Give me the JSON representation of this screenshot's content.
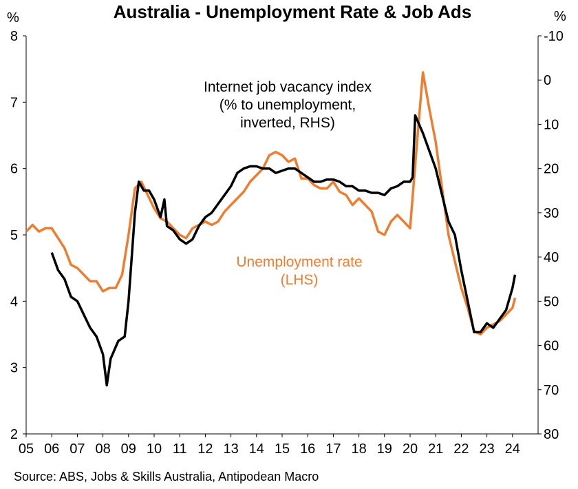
{
  "chart_data": {
    "type": "line",
    "title": "Australia - Unemployment Rate & Job Ads",
    "source": "Source: ABS, Jobs & Skills Australia, Antipodean Macro",
    "y_unit": "%",
    "y2_unit": "%",
    "xlim": [
      2005,
      2025
    ],
    "xticks": [
      {
        "value": 2005,
        "label": "05"
      },
      {
        "value": 2006,
        "label": "06"
      },
      {
        "value": 2007,
        "label": "07"
      },
      {
        "value": 2008,
        "label": "08"
      },
      {
        "value": 2009,
        "label": "09"
      },
      {
        "value": 2010,
        "label": "10"
      },
      {
        "value": 2011,
        "label": "11"
      },
      {
        "value": 2012,
        "label": "12"
      },
      {
        "value": 2013,
        "label": "13"
      },
      {
        "value": 2014,
        "label": "14"
      },
      {
        "value": 2015,
        "label": "15"
      },
      {
        "value": 2016,
        "label": "16"
      },
      {
        "value": 2017,
        "label": "17"
      },
      {
        "value": 2018,
        "label": "18"
      },
      {
        "value": 2019,
        "label": "19"
      },
      {
        "value": 2020,
        "label": "20"
      },
      {
        "value": 2021,
        "label": "21"
      },
      {
        "value": 2022,
        "label": "22"
      },
      {
        "value": 2023,
        "label": "23"
      },
      {
        "value": 2024,
        "label": "24"
      }
    ],
    "ylim": [
      2,
      8
    ],
    "yticks": [
      2,
      3,
      4,
      5,
      6,
      7,
      8
    ],
    "y2lim": [
      -10,
      80
    ],
    "y2_inverted": true,
    "y2ticks": [
      -10,
      0,
      10,
      20,
      30,
      40,
      50,
      60,
      70,
      80
    ],
    "series": [
      {
        "name": [
          "Unemployment rate",
          "(LHS)"
        ],
        "color": "#ed7d31",
        "axis": "y",
        "x": [
          2005.0,
          2005.25,
          2005.5,
          2005.75,
          2006.0,
          2006.25,
          2006.5,
          2006.75,
          2007.0,
          2007.25,
          2007.5,
          2007.75,
          2008.0,
          2008.25,
          2008.5,
          2008.75,
          2009.0,
          2009.25,
          2009.5,
          2009.75,
          2010.0,
          2010.25,
          2010.5,
          2010.75,
          2011.0,
          2011.25,
          2011.5,
          2011.75,
          2012.0,
          2012.25,
          2012.5,
          2012.75,
          2013.0,
          2013.25,
          2013.5,
          2013.75,
          2014.0,
          2014.25,
          2014.5,
          2014.75,
          2015.0,
          2015.25,
          2015.5,
          2015.75,
          2016.0,
          2016.25,
          2016.5,
          2016.75,
          2017.0,
          2017.25,
          2017.5,
          2017.75,
          2018.0,
          2018.25,
          2018.5,
          2018.75,
          2019.0,
          2019.25,
          2019.5,
          2019.75,
          2020.0,
          2020.25,
          2020.5,
          2020.75,
          2021.0,
          2021.25,
          2021.5,
          2021.75,
          2022.0,
          2022.25,
          2022.5,
          2022.75,
          2023.0,
          2023.25,
          2023.5,
          2023.75,
          2024.0,
          2024.1
        ],
        "values": [
          5.05,
          5.15,
          5.05,
          5.1,
          5.1,
          4.95,
          4.8,
          4.55,
          4.5,
          4.4,
          4.3,
          4.3,
          4.15,
          4.2,
          4.2,
          4.4,
          5.0,
          5.7,
          5.8,
          5.6,
          5.4,
          5.25,
          5.2,
          5.1,
          5.0,
          4.95,
          5.1,
          5.15,
          5.2,
          5.15,
          5.2,
          5.35,
          5.45,
          5.55,
          5.65,
          5.8,
          5.9,
          6.0,
          6.2,
          6.25,
          6.2,
          6.1,
          6.15,
          5.85,
          5.85,
          5.75,
          5.7,
          5.7,
          5.8,
          5.65,
          5.6,
          5.45,
          5.55,
          5.45,
          5.35,
          5.05,
          5.0,
          5.2,
          5.3,
          5.2,
          5.1,
          6.3,
          7.45,
          6.9,
          6.4,
          5.7,
          5.0,
          4.6,
          4.2,
          3.9,
          3.55,
          3.5,
          3.6,
          3.65,
          3.7,
          3.8,
          3.9,
          4.05
        ]
      },
      {
        "name": [
          "Internet job vacancy index",
          "(% to unemployment,",
          "inverted, RHS)"
        ],
        "color": "#000000",
        "axis": "y2",
        "x": [
          2006.0,
          2006.25,
          2006.5,
          2006.75,
          2007.0,
          2007.25,
          2007.5,
          2007.75,
          2008.0,
          2008.15,
          2008.3,
          2008.6,
          2008.85,
          2009.0,
          2009.25,
          2009.4,
          2009.6,
          2009.8,
          2010.0,
          2010.25,
          2010.4,
          2010.5,
          2010.75,
          2011.0,
          2011.25,
          2011.5,
          2011.75,
          2012.0,
          2012.25,
          2012.5,
          2012.75,
          2013.0,
          2013.25,
          2013.5,
          2013.75,
          2014.0,
          2014.25,
          2014.5,
          2014.75,
          2015.0,
          2015.25,
          2015.5,
          2015.75,
          2016.0,
          2016.25,
          2016.5,
          2016.75,
          2017.0,
          2017.25,
          2017.5,
          2017.75,
          2018.0,
          2018.25,
          2018.5,
          2018.75,
          2019.0,
          2019.25,
          2019.5,
          2019.75,
          2020.0,
          2020.1,
          2020.2,
          2020.5,
          2020.75,
          2021.0,
          2021.25,
          2021.5,
          2021.75,
          2022.0,
          2022.25,
          2022.5,
          2022.75,
          2023.0,
          2023.25,
          2023.5,
          2023.75,
          2024.0,
          2024.1
        ],
        "values": [
          39,
          43,
          45,
          49,
          50,
          53,
          56,
          58,
          62,
          69,
          63,
          59,
          58,
          50,
          30,
          23,
          25,
          25,
          27,
          31,
          27,
          33,
          34,
          36,
          37,
          36,
          33,
          31,
          30,
          28,
          26,
          24,
          21,
          20,
          19.5,
          19.5,
          20,
          20,
          21,
          20.5,
          20,
          20,
          21,
          22,
          23,
          23,
          22.5,
          22.5,
          23,
          24,
          24,
          25,
          25,
          25.5,
          25.5,
          26,
          24.5,
          24,
          23,
          23,
          22,
          8,
          12,
          16,
          20,
          26,
          32,
          35,
          43,
          50,
          57,
          57,
          55,
          56,
          54,
          52,
          47,
          44
        ]
      }
    ]
  }
}
